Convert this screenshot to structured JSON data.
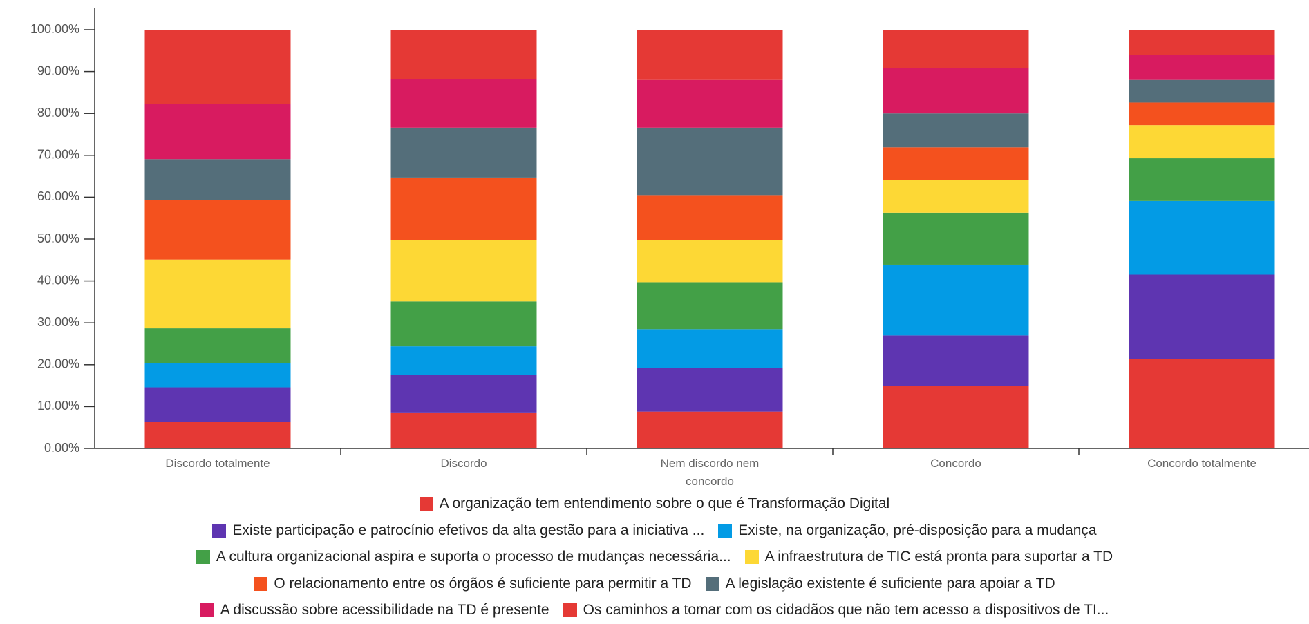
{
  "chart_data": {
    "type": "stacked_bar",
    "categories": [
      "Discordo totalmente",
      "Discordo",
      "Nem discordo nem concordo",
      "Concordo",
      "Concordo totalmente"
    ],
    "series": [
      {
        "name": "A organização tem entendimento sobre o que é Transformação Digital",
        "color": "#e53935",
        "values": [
          6.4,
          8.6,
          8.8,
          15.0,
          21.4
        ]
      },
      {
        "name": "Existe participação e patrocínio efetivos da alta gestão para a iniciativa ...",
        "color": "#5e35b1",
        "values": [
          8.2,
          9.0,
          10.4,
          12.0,
          20.1
        ]
      },
      {
        "name": "Existe, na organização, pré-disposição para a mudança",
        "color": "#039be5",
        "values": [
          5.8,
          6.8,
          9.3,
          16.9,
          17.6
        ]
      },
      {
        "name": "A cultura organizacional aspira e suporta o processo de mudanças necessária...",
        "color": "#43a047",
        "values": [
          8.3,
          10.7,
          11.2,
          12.4,
          10.2
        ]
      },
      {
        "name": "A infraestrutura de TIC está pronta para suportar a TD",
        "color": "#fdd835",
        "values": [
          16.4,
          14.6,
          10.0,
          7.8,
          7.9
        ]
      },
      {
        "name": "O relacionamento entre os órgãos é suficiente para permitir a TD",
        "color": "#f4511e",
        "values": [
          14.2,
          15.0,
          10.8,
          7.8,
          5.4
        ]
      },
      {
        "name": "A legislação existente é suficiente para apoiar a TD",
        "color": "#546e7a",
        "values": [
          9.8,
          11.9,
          16.1,
          8.1,
          5.4
        ]
      },
      {
        "name": "A discussão sobre acessibilidade na TD é presente",
        "color": "#d81b60",
        "values": [
          13.1,
          11.6,
          11.4,
          10.8,
          6.0
        ]
      },
      {
        "name": "Os caminhos a tomar com os cidadãos que não tem acesso a dispositivos de TI...",
        "color": "#e53935",
        "values": [
          17.8,
          11.8,
          12.0,
          9.2,
          6.0
        ]
      }
    ],
    "ylim": [
      0,
      100
    ],
    "yticks": [
      {
        "value": 0,
        "label": "0.00%"
      },
      {
        "value": 10,
        "label": "10.00%"
      },
      {
        "value": 20,
        "label": "20.00%"
      },
      {
        "value": 30,
        "label": "30.00%"
      },
      {
        "value": 40,
        "label": "40.00%"
      },
      {
        "value": 50,
        "label": "50.00%"
      },
      {
        "value": 60,
        "label": "60.00%"
      },
      {
        "value": 70,
        "label": "70.00%"
      },
      {
        "value": 80,
        "label": "80.00%"
      },
      {
        "value": 90,
        "label": "90.00%"
      },
      {
        "value": 100,
        "label": "100.00%"
      }
    ],
    "grid": false
  }
}
